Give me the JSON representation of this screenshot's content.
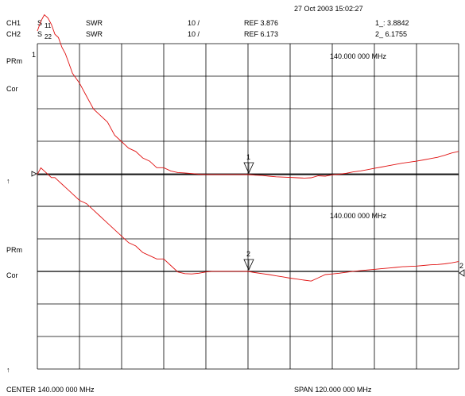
{
  "timestamp": "27 Oct 2003  15:02:27",
  "channels": [
    {
      "label": "CH1",
      "param": "S",
      "param_sub": "11",
      "format": "SWR",
      "scale": "10 /",
      "ref": "REF 3.876",
      "marker_readout": "1_: 3.8842"
    },
    {
      "label": "CH2",
      "param": "S",
      "param_sub": "22",
      "format": "SWR",
      "scale": "10 /",
      "ref": "REF 6.173",
      "marker_readout": "2_  6.1755"
    }
  ],
  "side_labels": {
    "prm": "PRm",
    "cor": "Cor",
    "arrow": "↑"
  },
  "marker_freq_top": "140.000 000 MHz",
  "marker_freq_bottom": "140.000 000 MHz",
  "marker_labels": [
    "1",
    "2"
  ],
  "footer": {
    "center": "CENTER  140.000 000 MHz",
    "span": "SPAN  120.000 000 MHz"
  },
  "colors": {
    "trace": "#e01010",
    "grid": "#000000",
    "background": "#ffffff"
  },
  "chart_data": [
    {
      "type": "line",
      "channel": "CH1",
      "x_unit": "MHz",
      "xlim": [
        80,
        200
      ],
      "ylim": [
        -46.124,
        53.876
      ],
      "ref_value": 3.876,
      "y_per_div": 10,
      "marker": {
        "x": 140,
        "y": 3.8842
      },
      "x": [
        80,
        81,
        82,
        83,
        84,
        85,
        86,
        87,
        88,
        89,
        90,
        92,
        94,
        96,
        98,
        100,
        102,
        104,
        106,
        108,
        110,
        112,
        114,
        116,
        118,
        120,
        122,
        124,
        126,
        128,
        130,
        132,
        134,
        136,
        138,
        140,
        142,
        144,
        146,
        148,
        150,
        152,
        154,
        156,
        158,
        160,
        162,
        164,
        166,
        168,
        170,
        172,
        174,
        176,
        178,
        180,
        182,
        184,
        186,
        188,
        190,
        192,
        194,
        196,
        198,
        200
      ],
      "y": [
        48,
        51,
        53,
        52,
        50,
        47,
        46,
        43,
        41,
        38,
        35,
        32,
        28,
        24,
        22,
        20,
        16,
        14,
        12,
        11,
        9,
        8,
        6,
        6,
        5,
        4.5,
        4.4,
        4.2,
        4.0,
        3.9,
        3.9,
        3.9,
        3.9,
        3.9,
        3.9,
        3.88,
        3.7,
        3.6,
        3.4,
        3.2,
        3.1,
        3.0,
        2.9,
        2.8,
        2.9,
        3.5,
        3.4,
        3.8,
        4.0,
        4.3,
        4.7,
        5.0,
        5.4,
        5.8,
        6.2,
        6.6,
        7.0,
        7.4,
        7.7,
        8.0,
        8.4,
        8.8,
        9.2,
        9.8,
        10.5,
        11.0
      ]
    },
    {
      "type": "line",
      "channel": "CH2",
      "x_unit": "MHz",
      "xlim": [
        80,
        200
      ],
      "ylim": [
        -43.827,
        56.173
      ],
      "ref_value": 6.173,
      "y_per_div": 10,
      "marker": {
        "x": 140,
        "y": 6.1755
      },
      "x": [
        80,
        81,
        82,
        83,
        84,
        85,
        86,
        87,
        88,
        89,
        90,
        92,
        94,
        96,
        98,
        100,
        102,
        104,
        106,
        108,
        110,
        112,
        114,
        116,
        118,
        120,
        122,
        124,
        126,
        128,
        130,
        132,
        134,
        136,
        138,
        140,
        142,
        144,
        146,
        148,
        150,
        152,
        154,
        156,
        158,
        160,
        162,
        164,
        166,
        168,
        170,
        172,
        174,
        176,
        178,
        180,
        182,
        184,
        186,
        188,
        190,
        192,
        194,
        196,
        198,
        200
      ],
      "y": [
        36,
        38,
        37,
        36,
        35,
        35,
        34,
        33,
        32,
        31,
        30,
        28,
        27,
        25,
        23,
        21,
        19,
        17,
        15,
        14,
        12,
        11,
        10,
        10,
        8,
        6,
        5.5,
        5.4,
        5.6,
        6.0,
        6.2,
        6.2,
        6.2,
        6.2,
        6.2,
        6.18,
        5.8,
        5.5,
        5.2,
        4.8,
        4.5,
        4.1,
        3.8,
        3.5,
        3.2,
        4.2,
        5.2,
        5.4,
        5.6,
        5.9,
        6.2,
        6.4,
        6.6,
        6.8,
        7.0,
        7.2,
        7.4,
        7.6,
        7.7,
        7.8,
        8.0,
        8.2,
        8.3,
        8.5,
        8.8,
        9.2
      ]
    }
  ]
}
